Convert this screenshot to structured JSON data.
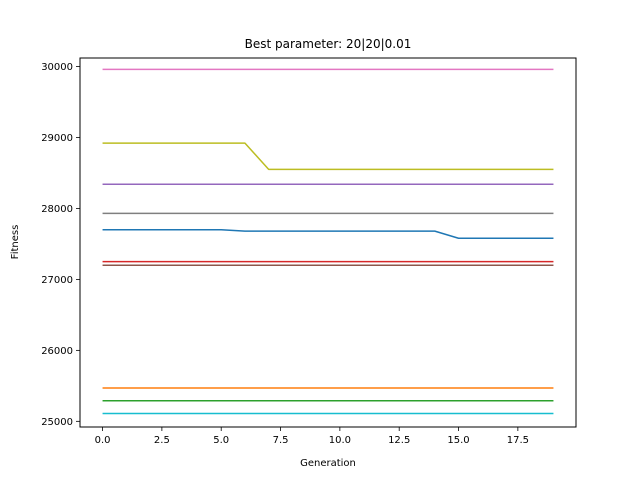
{
  "chart_data": {
    "type": "line",
    "title": "Best parameter: 20|20|0.01",
    "xlabel": "Generation",
    "ylabel": "Fitness",
    "xlim": [
      -0.95,
      19.95
    ],
    "ylim": [
      24920,
      30120
    ],
    "xticks": [
      0,
      2.5,
      5,
      7.5,
      10,
      12.5,
      15,
      17.5
    ],
    "xtick_labels": [
      "0.0",
      "2.5",
      "5.0",
      "7.5",
      "10.0",
      "12.5",
      "15.0",
      "17.5"
    ],
    "yticks": [
      25000,
      26000,
      27000,
      28000,
      29000,
      30000
    ],
    "ytick_labels": [
      "25000",
      "26000",
      "27000",
      "28000",
      "29000",
      "30000"
    ],
    "grid": false,
    "x": [
      0,
      1,
      2,
      3,
      4,
      5,
      6,
      7,
      8,
      9,
      10,
      11,
      12,
      13,
      14,
      15,
      16,
      17,
      18,
      19
    ],
    "series": [
      {
        "color": "#1f77b4",
        "values": [
          27700,
          27700,
          27700,
          27700,
          27700,
          27700,
          27680,
          27680,
          27680,
          27680,
          27680,
          27680,
          27680,
          27680,
          27680,
          27580,
          27580,
          27580,
          27580,
          27580
        ]
      },
      {
        "color": "#ff7f0e",
        "values": [
          25470,
          25470,
          25470,
          25470,
          25470,
          25470,
          25470,
          25470,
          25470,
          25470,
          25470,
          25470,
          25470,
          25470,
          25470,
          25470,
          25470,
          25470,
          25470,
          25470
        ]
      },
      {
        "color": "#2ca02c",
        "values": [
          25290,
          25290,
          25290,
          25290,
          25290,
          25290,
          25290,
          25290,
          25290,
          25290,
          25290,
          25290,
          25290,
          25290,
          25290,
          25290,
          25290,
          25290,
          25290,
          25290
        ]
      },
      {
        "color": "#d62728",
        "values": [
          27250,
          27250,
          27250,
          27250,
          27250,
          27250,
          27250,
          27250,
          27250,
          27250,
          27250,
          27250,
          27250,
          27250,
          27250,
          27250,
          27250,
          27250,
          27250,
          27250
        ]
      },
      {
        "color": "#9467bd",
        "values": [
          28340,
          28340,
          28340,
          28340,
          28340,
          28340,
          28340,
          28340,
          28340,
          28340,
          28340,
          28340,
          28340,
          28340,
          28340,
          28340,
          28340,
          28340,
          28340,
          28340
        ]
      },
      {
        "color": "#8c564b",
        "values": [
          27200,
          27200,
          27200,
          27200,
          27200,
          27200,
          27200,
          27200,
          27200,
          27200,
          27200,
          27200,
          27200,
          27200,
          27200,
          27200,
          27200,
          27200,
          27200,
          27200
        ]
      },
      {
        "color": "#e377c2",
        "values": [
          29960,
          29960,
          29960,
          29960,
          29960,
          29960,
          29960,
          29960,
          29960,
          29960,
          29960,
          29960,
          29960,
          29960,
          29960,
          29960,
          29960,
          29960,
          29960,
          29960
        ]
      },
      {
        "color": "#7f7f7f",
        "values": [
          27930,
          27930,
          27930,
          27930,
          27930,
          27930,
          27930,
          27930,
          27930,
          27930,
          27930,
          27930,
          27930,
          27930,
          27930,
          27930,
          27930,
          27930,
          27930,
          27930
        ]
      },
      {
        "color": "#bcbd22",
        "values": [
          28920,
          28920,
          28920,
          28920,
          28920,
          28920,
          28920,
          28550,
          28550,
          28550,
          28550,
          28550,
          28550,
          28550,
          28550,
          28550,
          28550,
          28550,
          28550,
          28550
        ]
      },
      {
        "color": "#17becf",
        "values": [
          25110,
          25110,
          25110,
          25110,
          25110,
          25110,
          25110,
          25110,
          25110,
          25110,
          25110,
          25110,
          25110,
          25110,
          25110,
          25110,
          25110,
          25110,
          25110,
          25110
        ]
      }
    ]
  }
}
